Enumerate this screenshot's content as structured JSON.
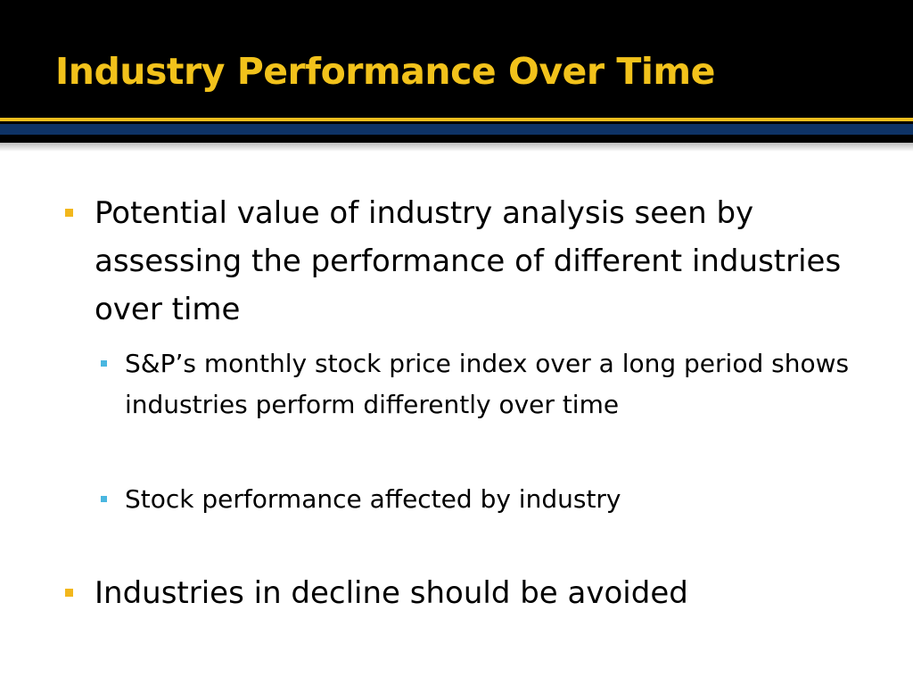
{
  "slide": {
    "title": "Industry Performance Over Time",
    "bullets": [
      {
        "text": "Potential value of industry analysis seen by assessing the performance of different industries over time"
      },
      {
        "text": "S&P’s monthly stock price index over a long period shows industries perform differently over time"
      },
      {
        "text": "Stock performance affected by industry"
      },
      {
        "text": "Industries in decline should be avoided"
      }
    ]
  },
  "colors": {
    "title": "#f2c21b",
    "title_bar": "#000000",
    "stripe_navy": "#0e3366",
    "bullet_level1": "#f2b71d",
    "bullet_level2": "#4ab7e0"
  }
}
